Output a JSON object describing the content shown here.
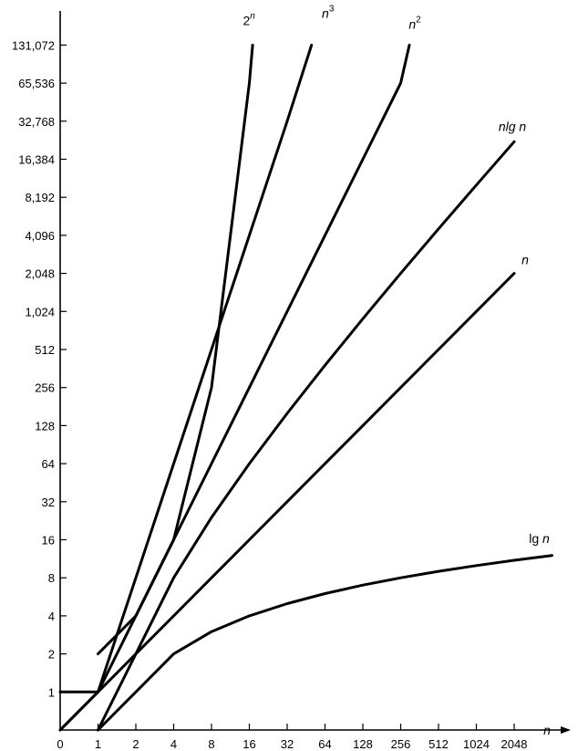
{
  "chart_data": {
    "type": "line",
    "x_scale": "log2",
    "y_scale": "log2",
    "grid": false,
    "xlabel": "n",
    "x_ticks": [
      {
        "value": 0,
        "label": "0"
      },
      {
        "value": 1,
        "label": "1"
      },
      {
        "value": 2,
        "label": "2"
      },
      {
        "value": 4,
        "label": "4"
      },
      {
        "value": 8,
        "label": "8"
      },
      {
        "value": 16,
        "label": "16"
      },
      {
        "value": 32,
        "label": "32"
      },
      {
        "value": 64,
        "label": "64"
      },
      {
        "value": 128,
        "label": "128"
      },
      {
        "value": 256,
        "label": "256"
      },
      {
        "value": 512,
        "label": "512"
      },
      {
        "value": 1024,
        "label": "1024"
      },
      {
        "value": 2048,
        "label": "2048"
      }
    ],
    "y_ticks": [
      {
        "value": 0,
        "label": "0"
      },
      {
        "value": 1,
        "label": "1"
      },
      {
        "value": 2,
        "label": "2"
      },
      {
        "value": 4,
        "label": "4"
      },
      {
        "value": 8,
        "label": "8"
      },
      {
        "value": 16,
        "label": "16"
      },
      {
        "value": 32,
        "label": "32"
      },
      {
        "value": 64,
        "label": "64"
      },
      {
        "value": 128,
        "label": "128"
      },
      {
        "value": 256,
        "label": "256"
      },
      {
        "value": 512,
        "label": "512"
      },
      {
        "value": 1024,
        "label": "1,024"
      },
      {
        "value": 2048,
        "label": "2,048"
      },
      {
        "value": 4096,
        "label": "4,096"
      },
      {
        "value": 8192,
        "label": "8,192"
      },
      {
        "value": 16384,
        "label": "16,384"
      },
      {
        "value": 32768,
        "label": "32,768"
      },
      {
        "value": 65536,
        "label": "65,536"
      },
      {
        "value": 131072,
        "label": "131,072"
      }
    ],
    "series": [
      {
        "name": "lg n",
        "label_main": "lg",
        "label_sup": "",
        "label_after": " n",
        "points": [
          [
            1,
            0
          ],
          [
            2,
            1
          ],
          [
            4,
            2
          ],
          [
            8,
            3
          ],
          [
            16,
            4
          ],
          [
            32,
            5
          ],
          [
            64,
            6
          ],
          [
            128,
            7
          ],
          [
            256,
            8
          ],
          [
            512,
            9
          ],
          [
            1024,
            10
          ],
          [
            2048,
            11
          ],
          [
            4096,
            12
          ]
        ]
      },
      {
        "name": "n",
        "label_main": "n",
        "label_sup": "",
        "label_after": "",
        "points": [
          [
            0,
            1
          ],
          [
            1,
            1
          ],
          [
            2,
            2
          ],
          [
            4,
            4
          ],
          [
            8,
            8
          ],
          [
            16,
            16
          ],
          [
            32,
            32
          ],
          [
            64,
            64
          ],
          [
            128,
            128
          ],
          [
            256,
            256
          ],
          [
            512,
            512
          ],
          [
            1024,
            1024
          ],
          [
            2048,
            2048
          ]
        ]
      },
      {
        "name": "n lg n",
        "label_main": "n",
        "label_sup": "",
        "label_after": "lg n",
        "points": [
          [
            1,
            0
          ],
          [
            2,
            2
          ],
          [
            4,
            8
          ],
          [
            8,
            24
          ],
          [
            16,
            64
          ],
          [
            32,
            160
          ],
          [
            64,
            384
          ],
          [
            128,
            896
          ],
          [
            256,
            2048
          ],
          [
            512,
            4608
          ],
          [
            1024,
            10240
          ],
          [
            2048,
            22528
          ]
        ]
      },
      {
        "name": "n^2",
        "label_main": "n",
        "label_sup": "2",
        "label_after": "",
        "points": [
          [
            0,
            0
          ],
          [
            1,
            1
          ],
          [
            2,
            4
          ],
          [
            4,
            16
          ],
          [
            8,
            64
          ],
          [
            16,
            256
          ],
          [
            32,
            1024
          ],
          [
            64,
            4096
          ],
          [
            128,
            16384
          ],
          [
            256,
            65536
          ],
          [
            300,
            131072
          ]
        ]
      },
      {
        "name": "n^3",
        "label_main": "n",
        "label_sup": "3",
        "label_after": "",
        "points": [
          [
            0,
            0
          ],
          [
            1,
            1
          ],
          [
            2,
            8
          ],
          [
            4,
            64
          ],
          [
            8,
            512
          ],
          [
            16,
            4096
          ],
          [
            32,
            32768
          ],
          [
            50,
            131072
          ]
        ]
      },
      {
        "name": "2^n",
        "label_main": "2",
        "label_sup": "n",
        "label_after": "",
        "points": [
          [
            1,
            2
          ],
          [
            2,
            4
          ],
          [
            4,
            16
          ],
          [
            8,
            256
          ],
          [
            16,
            65536
          ],
          [
            17,
            131072
          ]
        ]
      }
    ]
  }
}
